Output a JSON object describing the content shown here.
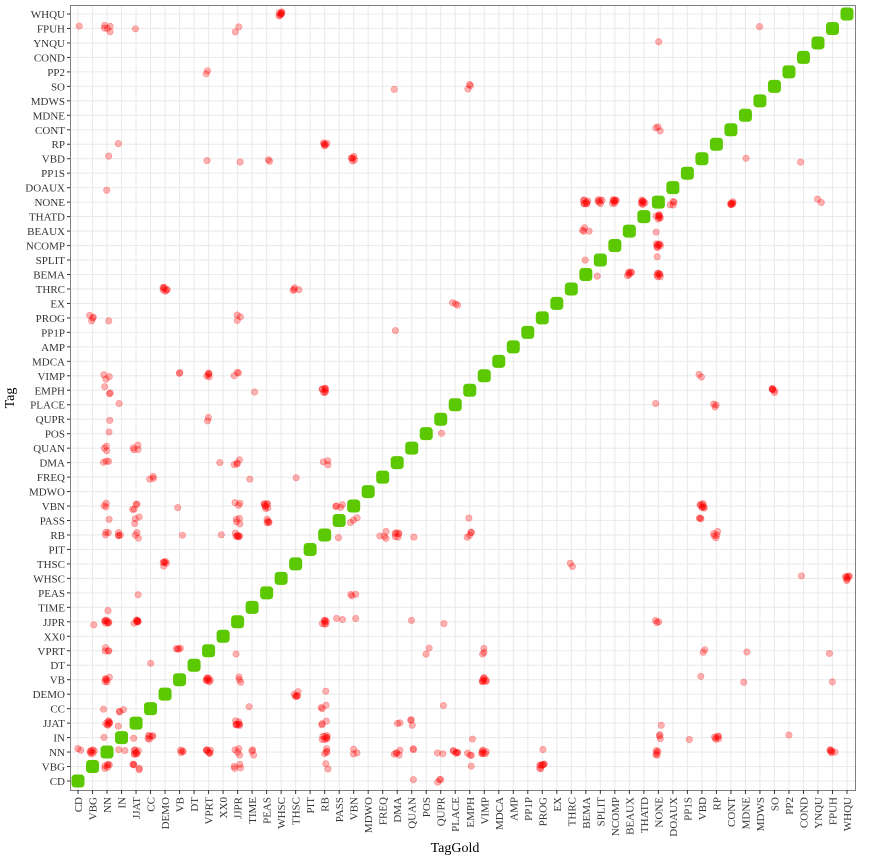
{
  "chart_data": {
    "type": "scatter",
    "title": "",
    "xlabel": "TagGold",
    "ylabel": "Tag",
    "grid": true,
    "legend": "none",
    "categories": [
      "CD",
      "VBG",
      "NN",
      "IN",
      "JJAT",
      "CC",
      "DEMO",
      "VB",
      "DT",
      "VPRT",
      "XX0",
      "JJPR",
      "TIME",
      "PEAS",
      "WHSC",
      "THSC",
      "PIT",
      "RB",
      "PASS",
      "VBN",
      "MDWO",
      "FREQ",
      "DMA",
      "QUAN",
      "POS",
      "QUPR",
      "PLACE",
      "EMPH",
      "VIMP",
      "MDCA",
      "AMP",
      "PP1P",
      "PROG",
      "EX",
      "THRC",
      "BEMA",
      "SPLIT",
      "NCOMP",
      "BEAUX",
      "THATD",
      "NONE",
      "DOAUX",
      "PP1S",
      "VBD",
      "RP",
      "CONT",
      "MDNE",
      "MDWS",
      "SO",
      "PP2",
      "COND",
      "YNQU",
      "FPUH",
      "WHQU"
    ],
    "colors": {
      "correct": "#5CC800",
      "error": "#FF0000"
    },
    "series": [
      {
        "name": "correct",
        "note": "diagonal: Tag equals TagGold for every category"
      },
      {
        "name": "error",
        "points_gold_tag_count": [
          [
            "WHSC",
            "WHQU",
            8
          ],
          [
            "CD",
            "FPUH",
            1
          ],
          [
            "NN",
            "FPUH",
            5
          ],
          [
            "JJAT",
            "FPUH",
            1
          ],
          [
            "JJPR",
            "FPUH",
            2
          ],
          [
            "MDWS",
            "FPUH",
            1
          ],
          [
            "NONE",
            "YNQU",
            1
          ],
          [
            "VPRT",
            "PP2",
            2
          ],
          [
            "DMA",
            "SO",
            1
          ],
          [
            "EMPH",
            "SO",
            3
          ],
          [
            "NONE",
            "CONT",
            3
          ],
          [
            "IN",
            "RP",
            1
          ],
          [
            "RB",
            "RP",
            6
          ],
          [
            "NN",
            "VBD",
            1
          ],
          [
            "VPRT",
            "VBD",
            1
          ],
          [
            "JJPR",
            "VBD",
            1
          ],
          [
            "PEAS",
            "VBD",
            2
          ],
          [
            "VBN",
            "VBD",
            6
          ],
          [
            "MDNE",
            "VBD",
            1
          ],
          [
            "COND",
            "VBD",
            1
          ],
          [
            "NN",
            "DOAUX",
            1
          ],
          [
            "BEMA",
            "NONE",
            8
          ],
          [
            "SPLIT",
            "NONE",
            6
          ],
          [
            "NCOMP",
            "NONE",
            8
          ],
          [
            "THATD",
            "NONE",
            8
          ],
          [
            "DOAUX",
            "NONE",
            4
          ],
          [
            "CONT",
            "NONE",
            7
          ],
          [
            "YNQU",
            "NONE",
            2
          ],
          [
            "NONE",
            "THATD",
            8
          ],
          [
            "BEMA",
            "BEAUX",
            4
          ],
          [
            "NONE",
            "BEAUX",
            1
          ],
          [
            "NONE",
            "NCOMP",
            8
          ],
          [
            "BEMA",
            "SPLIT",
            1
          ],
          [
            "NONE",
            "SPLIT",
            1
          ],
          [
            "SPLIT",
            "BEMA",
            1
          ],
          [
            "BEAUX",
            "BEMA",
            6
          ],
          [
            "NONE",
            "BEMA",
            7
          ],
          [
            "DEMO",
            "THRC",
            7
          ],
          [
            "THSC",
            "THRC",
            4
          ],
          [
            "PLACE",
            "EX",
            3
          ],
          [
            "VBG",
            "PROG",
            4
          ],
          [
            "NN",
            "PROG",
            1
          ],
          [
            "JJPR",
            "PROG",
            3
          ],
          [
            "DMA",
            "PP1P",
            1
          ],
          [
            "NN",
            "VIMP",
            3
          ],
          [
            "VB",
            "VIMP",
            2
          ],
          [
            "VPRT",
            "VIMP",
            5
          ],
          [
            "JJPR",
            "VIMP",
            3
          ],
          [
            "VBD",
            "VIMP",
            2
          ],
          [
            "NN",
            "EMPH",
            3
          ],
          [
            "TIME",
            "EMPH",
            1
          ],
          [
            "RB",
            "EMPH",
            8
          ],
          [
            "SO",
            "EMPH",
            6
          ],
          [
            "IN",
            "PLACE",
            1
          ],
          [
            "NONE",
            "PLACE",
            1
          ],
          [
            "RP",
            "PLACE",
            3
          ],
          [
            "NN",
            "QUPR",
            1
          ],
          [
            "VPRT",
            "QUPR",
            2
          ],
          [
            "NN",
            "POS",
            1
          ],
          [
            "QUPR",
            "POS",
            1
          ],
          [
            "NN",
            "QUAN",
            3
          ],
          [
            "JJAT",
            "QUAN",
            4
          ],
          [
            "NN",
            "DMA",
            3
          ],
          [
            "XX0",
            "DMA",
            1
          ],
          [
            "JJPR",
            "DMA",
            4
          ],
          [
            "RB",
            "DMA",
            3
          ],
          [
            "CC",
            "FREQ",
            3
          ],
          [
            "TIME",
            "FREQ",
            1
          ],
          [
            "THSC",
            "FREQ",
            1
          ],
          [
            "NN",
            "VBN",
            3
          ],
          [
            "JJAT",
            "VBN",
            4
          ],
          [
            "VB",
            "VBN",
            1
          ],
          [
            "JJPR",
            "VBN",
            3
          ],
          [
            "PEAS",
            "VBN",
            8
          ],
          [
            "PASS",
            "VBN",
            4
          ],
          [
            "VBD",
            "VBN",
            8
          ],
          [
            "NN",
            "PASS",
            1
          ],
          [
            "JJAT",
            "PASS",
            3
          ],
          [
            "JJPR",
            "PASS",
            4
          ],
          [
            "PEAS",
            "PASS",
            5
          ],
          [
            "VBN",
            "PASS",
            3
          ],
          [
            "EMPH",
            "PASS",
            1
          ],
          [
            "VBD",
            "PASS",
            3
          ],
          [
            "NN",
            "RB",
            3
          ],
          [
            "IN",
            "RB",
            4
          ],
          [
            "JJAT",
            "RB",
            3
          ],
          [
            "VB",
            "RB",
            1
          ],
          [
            "XX0",
            "RB",
            1
          ],
          [
            "JJPR",
            "RB",
            7
          ],
          [
            "PASS",
            "RB",
            1
          ],
          [
            "FREQ",
            "RB",
            4
          ],
          [
            "DMA",
            "RB",
            6
          ],
          [
            "QUAN",
            "RB",
            1
          ],
          [
            "EMPH",
            "RB",
            4
          ],
          [
            "RP",
            "RB",
            5
          ],
          [
            "DEMO",
            "THSC",
            6
          ],
          [
            "THRC",
            "THSC",
            2
          ],
          [
            "COND",
            "WHSC",
            1
          ],
          [
            "WHQU",
            "WHSC",
            7
          ],
          [
            "JJAT",
            "PEAS",
            1
          ],
          [
            "VBN",
            "PEAS",
            3
          ],
          [
            "NN",
            "TIME",
            1
          ],
          [
            "VBG",
            "JJPR",
            1
          ],
          [
            "NN",
            "JJPR",
            8
          ],
          [
            "JJAT",
            "JJPR",
            8
          ],
          [
            "RB",
            "JJPR",
            7
          ],
          [
            "PASS",
            "JJPR",
            2
          ],
          [
            "VBN",
            "JJPR",
            1
          ],
          [
            "QUAN",
            "JJPR",
            1
          ],
          [
            "QUPR",
            "JJPR",
            1
          ],
          [
            "NONE",
            "JJPR",
            3
          ],
          [
            "NN",
            "VPRT",
            4
          ],
          [
            "VB",
            "VPRT",
            4
          ],
          [
            "JJPR",
            "VPRT",
            1
          ],
          [
            "VIMP",
            "VPRT",
            3
          ],
          [
            "POS",
            "VPRT",
            2
          ],
          [
            "MDNE",
            "VPRT",
            1
          ],
          [
            "FPUH",
            "VPRT",
            1
          ],
          [
            "VBD",
            "VPRT",
            2
          ],
          [
            "CC",
            "DT",
            1
          ],
          [
            "NN",
            "VB",
            6
          ],
          [
            "VPRT",
            "VB",
            8
          ],
          [
            "JJPR",
            "VB",
            3
          ],
          [
            "VIMP",
            "VB",
            8
          ],
          [
            "VBD",
            "VB",
            1
          ],
          [
            "MDNE",
            "VB",
            1
          ],
          [
            "FPUH",
            "VB",
            1
          ],
          [
            "THSC",
            "DEMO",
            6
          ],
          [
            "RB",
            "DEMO",
            1
          ],
          [
            "NN",
            "CC",
            1
          ],
          [
            "IN",
            "CC",
            3
          ],
          [
            "TIME",
            "CC",
            1
          ],
          [
            "RB",
            "CC",
            3
          ],
          [
            "QUPR",
            "CC",
            1
          ],
          [
            "NN",
            "JJAT",
            8
          ],
          [
            "IN",
            "JJAT",
            1
          ],
          [
            "JJPR",
            "JJAT",
            8
          ],
          [
            "RB",
            "JJAT",
            3
          ],
          [
            "DMA",
            "JJAT",
            2
          ],
          [
            "QUAN",
            "JJAT",
            3
          ],
          [
            "NONE",
            "JJAT",
            1
          ],
          [
            "NN",
            "IN",
            1
          ],
          [
            "JJAT",
            "IN",
            1
          ],
          [
            "CC",
            "IN",
            6
          ],
          [
            "RB",
            "IN",
            8
          ],
          [
            "EMPH",
            "IN",
            1
          ],
          [
            "NONE",
            "IN",
            3
          ],
          [
            "PP1S",
            "IN",
            1
          ],
          [
            "RP",
            "IN",
            6
          ],
          [
            "PP2",
            "IN",
            1
          ],
          [
            "CD",
            "NN",
            2
          ],
          [
            "VBG",
            "NN",
            7
          ],
          [
            "IN",
            "NN",
            2
          ],
          [
            "JJAT",
            "NN",
            8
          ],
          [
            "VB",
            "NN",
            4
          ],
          [
            "VPRT",
            "NN",
            7
          ],
          [
            "JJPR",
            "NN",
            4
          ],
          [
            "TIME",
            "NN",
            3
          ],
          [
            "VBN",
            "NN",
            3
          ],
          [
            "RB",
            "NN",
            4
          ],
          [
            "DMA",
            "NN",
            5
          ],
          [
            "QUAN",
            "NN",
            2
          ],
          [
            "QUPR",
            "NN",
            2
          ],
          [
            "PLACE",
            "NN",
            6
          ],
          [
            "EMPH",
            "NN",
            3
          ],
          [
            "VIMP",
            "NN",
            7
          ],
          [
            "PROG",
            "NN",
            1
          ],
          [
            "NONE",
            "NN",
            5
          ],
          [
            "FPUH",
            "NN",
            6
          ],
          [
            "NN",
            "VBG",
            6
          ],
          [
            "JJAT",
            "VBG",
            5
          ],
          [
            "JJPR",
            "VBG",
            4
          ],
          [
            "RB",
            "VBG",
            2
          ],
          [
            "PROG",
            "VBG",
            8
          ],
          [
            "EMPH",
            "VBG",
            1
          ],
          [
            "QUAN",
            "CD",
            1
          ],
          [
            "QUPR",
            "CD",
            3
          ]
        ]
      }
    ]
  }
}
